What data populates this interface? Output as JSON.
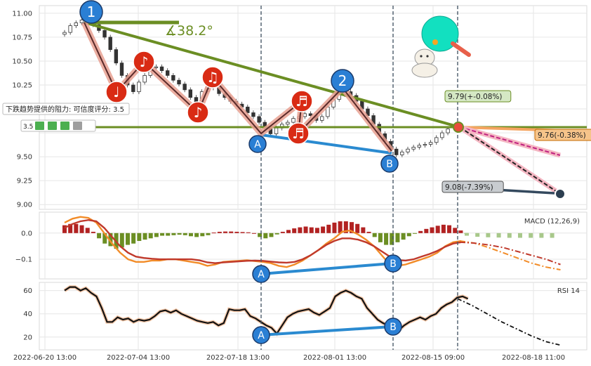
{
  "chart_data": {
    "type": "candlestick",
    "x_ticks": [
      "2022-06-20 13:00",
      "2022-07-04 13:00",
      "2022-07-18 13:00",
      "2022-08-01 13:00",
      "2022-08-15 09:00",
      "2022-08-18 11:00"
    ],
    "price_panel": {
      "y_ticks": [
        "11.00",
        "10.75",
        "10.50",
        "10.25",
        "10.00",
        "9.75",
        "9.50",
        "9.25",
        "9.00"
      ],
      "ylim": [
        8.95,
        11.08
      ],
      "close": [
        10.8,
        10.87,
        10.9,
        10.93,
        10.92,
        10.88,
        10.82,
        10.75,
        10.62,
        10.48,
        10.35,
        10.25,
        10.18,
        10.28,
        10.35,
        10.43,
        10.44,
        10.4,
        10.35,
        10.3,
        10.26,
        10.2,
        10.12,
        10.05,
        10.18,
        10.27,
        10.22,
        10.16,
        10.12,
        10.08,
        10.05,
        10.02,
        9.96,
        9.92,
        9.86,
        9.8,
        9.74,
        9.8,
        9.84,
        9.86,
        9.9,
        9.92,
        9.95,
        9.93,
        9.88,
        9.92,
        10.02,
        10.1,
        10.15,
        10.18,
        10.14,
        10.08,
        10.0,
        9.93,
        9.84,
        9.74,
        9.66,
        9.58,
        9.52,
        9.55,
        9.58,
        9.6,
        9.62,
        9.63,
        9.65,
        9.7,
        9.75,
        9.79
      ],
      "pivots": [
        {
          "label": "1",
          "value": 10.95
        },
        {
          "label": "A",
          "value": 9.75
        },
        {
          "label": "2",
          "value": 10.18
        },
        {
          "label": "B",
          "value": 9.52
        }
      ],
      "angle_label": "∡38.2°",
      "resistance_label": "下跌趋势提供的阻力: 可信度评分: 3.5",
      "resistance_score": "3.5",
      "forecasts": [
        {
          "label": "9.79(+-0.08%)",
          "value": 9.79
        },
        {
          "label": "9.76(-0.38%)",
          "value": 9.76
        },
        {
          "label": "9.08(-7.39%)",
          "value": 9.08
        }
      ]
    },
    "macd_panel": {
      "title": "MACD (12,26,9)",
      "y_ticks": [
        "0.0",
        "−0.1"
      ],
      "ylim": [
        -0.175,
        0.08
      ],
      "hist": [
        0.03,
        0.035,
        0.035,
        0.03,
        0.02,
        0.005,
        -0.02,
        -0.04,
        -0.05,
        -0.06,
        -0.055,
        -0.045,
        -0.04,
        -0.03,
        -0.025,
        -0.02,
        -0.015,
        -0.01,
        -0.01,
        -0.008,
        -0.006,
        -0.008,
        -0.012,
        -0.015,
        -0.012,
        -0.008,
        0.002,
        0.005,
        0.006,
        0.006,
        0.005,
        0.004,
        0.003,
        0.0,
        -0.015,
        -0.02,
        -0.015,
        -0.005,
        0.005,
        0.012,
        0.018,
        0.022,
        0.025,
        0.022,
        0.02,
        0.025,
        0.032,
        0.04,
        0.045,
        0.045,
        0.042,
        0.035,
        0.022,
        0.005,
        -0.015,
        -0.035,
        -0.045,
        -0.045,
        -0.035,
        -0.025,
        -0.012,
        -0.002,
        0.008,
        0.016,
        0.022,
        0.028,
        0.032,
        0.03,
        0.02,
        0.01,
        -0.002,
        -0.01,
        -0.014,
        -0.016,
        -0.017,
        -0.018,
        -0.018,
        -0.018,
        -0.018,
        -0.018
      ],
      "macd": [
        0.04,
        0.055,
        0.062,
        0.058,
        0.04,
        0.0,
        -0.04,
        -0.075,
        -0.1,
        -0.11,
        -0.11,
        -0.105,
        -0.105,
        -0.1,
        -0.1,
        -0.105,
        -0.11,
        -0.115,
        -0.125,
        -0.12,
        -0.11,
        -0.108,
        -0.106,
        -0.104,
        -0.107,
        -0.11,
        -0.115,
        -0.125,
        -0.13,
        -0.12,
        -0.105,
        -0.085,
        -0.065,
        -0.04,
        -0.02,
        0.005,
        0.01,
        -0.005,
        -0.025,
        -0.05,
        -0.085,
        -0.12,
        -0.125,
        -0.12,
        -0.11,
        -0.1,
        -0.09,
        -0.075,
        -0.05,
        -0.035,
        -0.03
      ],
      "signal": [
        0.02,
        0.035,
        0.045,
        0.05,
        0.045,
        0.02,
        -0.015,
        -0.05,
        -0.075,
        -0.09,
        -0.095,
        -0.098,
        -0.1,
        -0.1,
        -0.1,
        -0.1,
        -0.1,
        -0.104,
        -0.112,
        -0.115,
        -0.112,
        -0.11,
        -0.108,
        -0.106,
        -0.105,
        -0.106,
        -0.109,
        -0.112,
        -0.113,
        -0.11,
        -0.1,
        -0.085,
        -0.065,
        -0.045,
        -0.03,
        -0.02,
        -0.02,
        -0.025,
        -0.035,
        -0.05,
        -0.07,
        -0.09,
        -0.103,
        -0.105,
        -0.1,
        -0.09,
        -0.08,
        -0.068,
        -0.052,
        -0.04,
        -0.035
      ],
      "macd_forecast": [
        -0.03,
        -0.038,
        -0.055,
        -0.075,
        -0.095,
        -0.115,
        -0.13,
        -0.14
      ],
      "signal_forecast": [
        -0.035,
        -0.038,
        -0.045,
        -0.055,
        -0.07,
        -0.085,
        -0.1,
        -0.12
      ]
    },
    "rsi_panel": {
      "title": "RSI 14",
      "y_ticks": [
        "60",
        "40",
        "20"
      ],
      "ylim": [
        9,
        67
      ],
      "values": [
        60,
        63,
        63,
        60,
        62,
        58,
        55,
        45,
        33,
        33,
        37,
        35,
        36,
        33,
        35,
        34,
        35,
        38,
        42,
        43,
        41,
        43,
        40,
        38,
        36,
        34,
        33,
        32,
        33,
        30,
        32,
        44,
        43,
        43,
        44,
        38,
        36,
        33,
        30,
        28,
        23,
        30,
        37,
        40,
        42,
        43,
        44,
        41,
        39,
        42,
        45,
        55,
        58,
        60,
        58,
        55,
        53,
        45,
        40,
        35,
        32,
        30,
        28,
        26,
        30,
        33,
        35,
        37,
        35,
        38,
        40,
        45,
        48,
        50,
        54,
        55,
        53
      ],
      "forecast": [
        53,
        47,
        40,
        33,
        27,
        21,
        16,
        13
      ]
    }
  }
}
